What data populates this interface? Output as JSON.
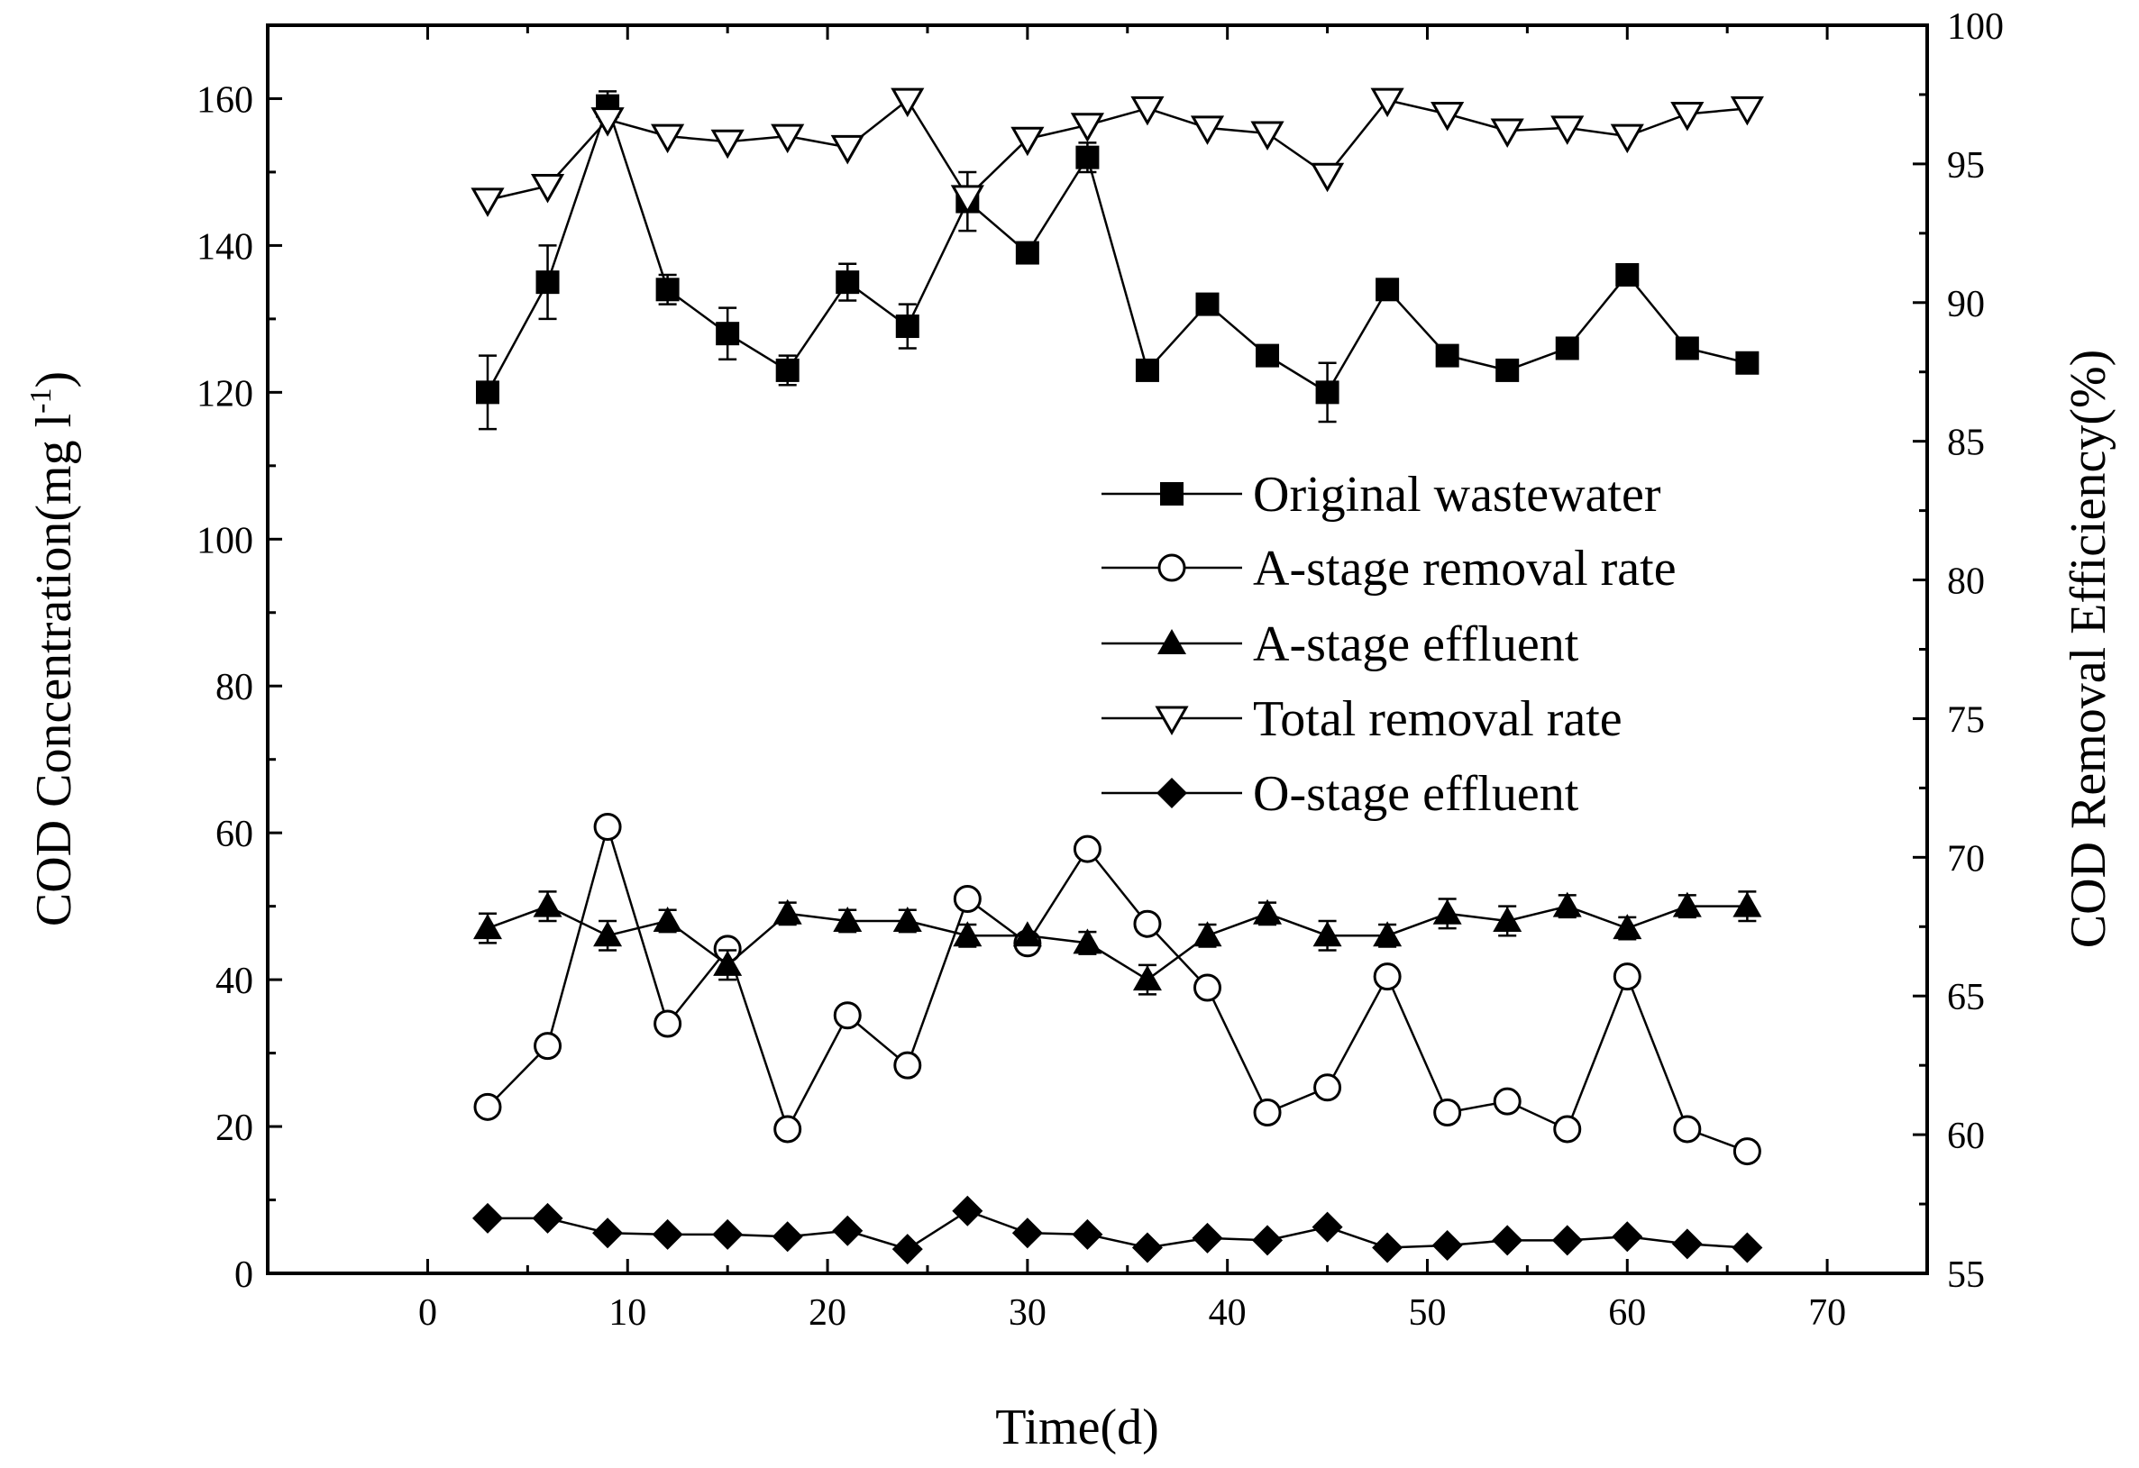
{
  "chart_data": {
    "type": "line",
    "xlabel": "Time(d)",
    "ylabel_left": "COD Concentration(mg l",
    "ylabel_left_sup": "-1",
    "ylabel_left_end": ")",
    "ylabel_right": "COD Removal Efficiency(%)",
    "xlim": [
      -8,
      75
    ],
    "ylim_left": [
      0,
      170
    ],
    "ylim_right": [
      55,
      100
    ],
    "xticks": [
      "0",
      "10",
      "20",
      "30",
      "40",
      "50",
      "60",
      "70"
    ],
    "yticks_left": [
      "0",
      "20",
      "40",
      "60",
      "80",
      "100",
      "120",
      "140",
      "160"
    ],
    "yticks_right": [
      "55",
      "60",
      "65",
      "70",
      "75",
      "80",
      "85",
      "90",
      "95",
      "100"
    ],
    "x": [
      3,
      6,
      9,
      12,
      15,
      18,
      21,
      24,
      27,
      30,
      33,
      36,
      39,
      42,
      45,
      48,
      51,
      54,
      57,
      60,
      63,
      66
    ],
    "series": [
      {
        "name": "Original wastewater",
        "axis": "left",
        "marker": "square-filled",
        "values": [
          120,
          135,
          159,
          134,
          128,
          123,
          135,
          129,
          146,
          139,
          152,
          123,
          132,
          125,
          120,
          134,
          125,
          123,
          126,
          136,
          126,
          124
        ],
        "errors": [
          5,
          5,
          2,
          2,
          3.5,
          2,
          2.5,
          3,
          4,
          0,
          2,
          0,
          0,
          0,
          4,
          0,
          0,
          0,
          0,
          0,
          0,
          0
        ]
      },
      {
        "name": "A-stage removal rate",
        "axis": "right",
        "marker": "circle-open",
        "values": [
          61.0,
          63.2,
          71.1,
          64.0,
          66.7,
          60.2,
          64.3,
          62.5,
          68.5,
          66.9,
          70.3,
          67.6,
          65.3,
          60.8,
          61.7,
          65.7,
          60.8,
          61.2,
          60.2,
          65.7,
          60.2,
          59.4
        ]
      },
      {
        "name": "A-stage effluent",
        "axis": "left",
        "marker": "triangle-up-filled",
        "values": [
          47,
          50,
          46,
          48,
          42,
          49,
          48,
          48,
          46,
          46,
          45,
          40,
          46,
          49,
          46,
          46,
          49,
          48,
          50,
          47,
          50,
          50
        ],
        "errors": [
          2,
          2,
          2,
          1.5,
          2,
          1.5,
          1.5,
          1.5,
          1.5,
          0,
          1.5,
          2,
          1.5,
          1.5,
          2,
          1.5,
          2,
          2,
          1.5,
          1.5,
          1.5,
          2
        ]
      },
      {
        "name": "Total removal rate",
        "axis": "right",
        "marker": "triangle-down-open",
        "values": [
          93.7,
          94.2,
          96.6,
          96.0,
          95.8,
          96.0,
          95.6,
          97.3,
          93.8,
          95.9,
          96.4,
          97.0,
          96.3,
          96.1,
          94.6,
          97.3,
          96.8,
          96.2,
          96.3,
          96.0,
          96.8,
          97.0
        ]
      },
      {
        "name": "O-stage effluent",
        "axis": "left",
        "marker": "diamond-filled",
        "values": [
          7.5,
          7.5,
          5.5,
          5.3,
          5.3,
          5.0,
          5.8,
          3.3,
          8.5,
          5.5,
          5.3,
          3.5,
          4.8,
          4.5,
          6.3,
          3.5,
          3.8,
          4.5,
          4.5,
          5.0,
          4.0,
          3.5
        ]
      }
    ]
  }
}
